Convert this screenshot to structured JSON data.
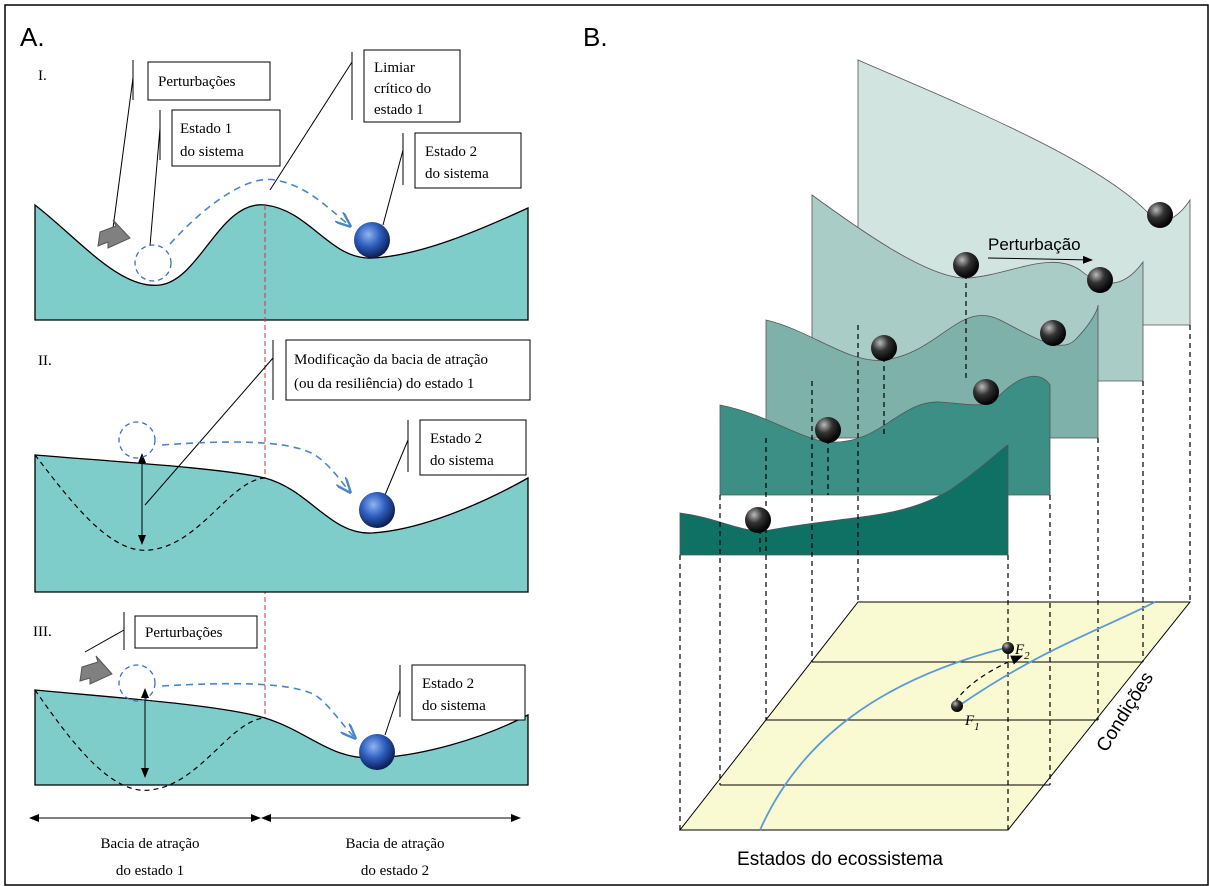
{
  "panel_a": {
    "label": "A.",
    "rows": [
      {
        "label": "I.",
        "callouts": [
          {
            "lines": [
              "Perturbações"
            ]
          },
          {
            "lines": [
              "Estado 1",
              "do sistema"
            ]
          },
          {
            "lines": [
              "Limiar",
              "crítico do",
              "estado 1"
            ]
          },
          {
            "lines": [
              "Estado 2",
              "do sistema"
            ]
          }
        ]
      },
      {
        "label": "II.",
        "callouts": [
          {
            "lines": [
              "Modificação da bacia de atração",
              "(ou da resiliência) do estado 1"
            ]
          },
          {
            "lines": [
              "Estado 2",
              "do sistema"
            ]
          }
        ]
      },
      {
        "label": "III.",
        "callouts": [
          {
            "lines": [
              "Perturbações"
            ]
          },
          {
            "lines": [
              "Estado 2",
              "do sistema"
            ]
          }
        ]
      }
    ],
    "basins": [
      {
        "lines": [
          "Bacia de atração",
          "do estado 1"
        ]
      },
      {
        "lines": [
          "Bacia de atração",
          "do estado 2"
        ]
      }
    ]
  },
  "panel_b": {
    "label": "B.",
    "arrow_label": "Perturbação",
    "y_axis": "Condições",
    "x_axis": "Estados do ecossistema",
    "points": [
      {
        "symbol": "F",
        "subscript": "1"
      },
      {
        "symbol": "F",
        "subscript": "2"
      }
    ]
  }
}
